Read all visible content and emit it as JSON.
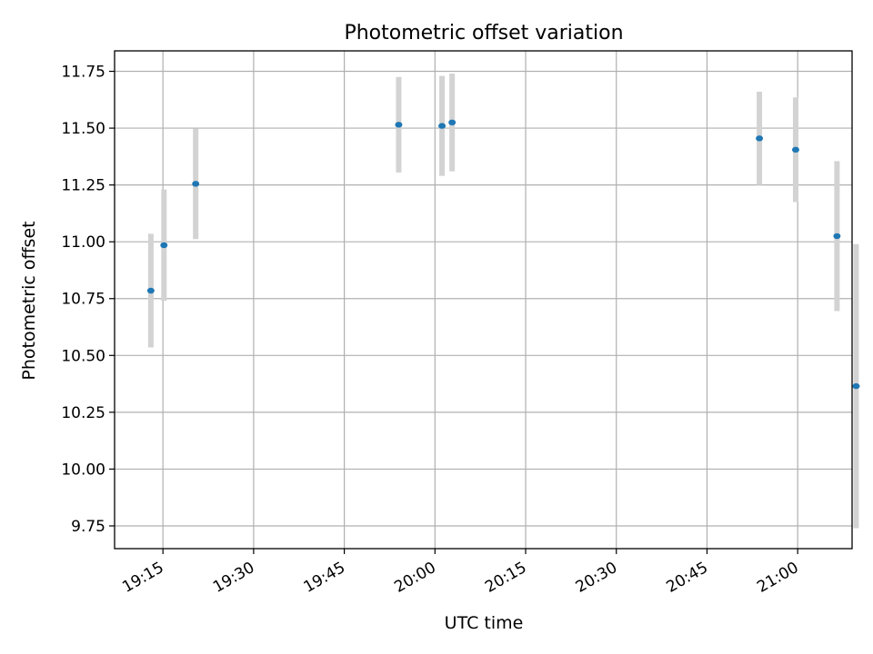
{
  "chart_data": {
    "type": "scatter",
    "title": "Photometric offset variation",
    "xlabel": "UTC time",
    "ylabel": "Photometric offset",
    "x_unit": "UTC time of day (HH:MM)",
    "xlim": [
      "19:07",
      "21:09"
    ],
    "ylim": [
      9.65,
      11.84
    ],
    "grid": true,
    "x_ticks": [
      "19:15",
      "19:30",
      "19:45",
      "20:00",
      "20:15",
      "20:30",
      "20:45",
      "21:00"
    ],
    "y_ticks": [
      "9.75",
      "10.00",
      "10.25",
      "10.50",
      "10.75",
      "11.00",
      "11.25",
      "11.50",
      "11.75"
    ],
    "point_color": "#1f77b4",
    "errorbar_color": "#d3d3d3",
    "points": [
      {
        "x": "19:13:00",
        "y": 10.785,
        "err": 0.25
      },
      {
        "x": "19:15:10",
        "y": 10.985,
        "err": 0.245
      },
      {
        "x": "19:20:25",
        "y": 11.255,
        "err": 0.243
      },
      {
        "x": "19:54:00",
        "y": 11.515,
        "err": 0.21
      },
      {
        "x": "19:61:10",
        "y": 11.51,
        "err": 0.22
      },
      {
        "x": "19:62:50",
        "y": 11.525,
        "err": 0.215
      },
      {
        "x": "20:53:40",
        "y": 11.455,
        "err": 0.205
      },
      {
        "x": "20:59:40",
        "y": 11.405,
        "err": 0.23
      },
      {
        "x": "21:06:30",
        "y": 11.025,
        "err": 0.33
      },
      {
        "x": "21:09:40",
        "y": 10.365,
        "err": 0.625
      }
    ]
  }
}
